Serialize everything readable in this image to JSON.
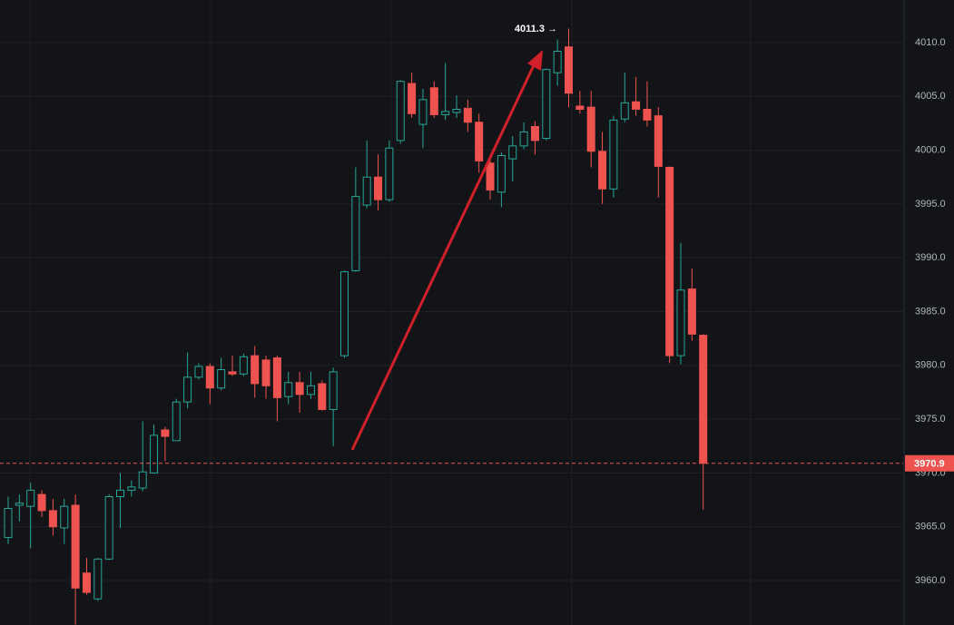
{
  "chart_data": {
    "type": "candlestick",
    "up_color": "#26a69a",
    "down_color": "#ef5350",
    "grid": true,
    "ylim": [
      3955.87,
      4013.96
    ],
    "yticks": [
      {
        "value": 3960,
        "label": "3960.0"
      },
      {
        "value": 3965,
        "label": "3965.0"
      },
      {
        "value": 3970,
        "label": "3970.0"
      },
      {
        "value": 3975,
        "label": "3975.0"
      },
      {
        "value": 3980,
        "label": "3980.0"
      },
      {
        "value": 3985,
        "label": "3985.0"
      },
      {
        "value": 3990,
        "label": "3990.0"
      },
      {
        "value": 3995,
        "label": "3995.0"
      },
      {
        "value": 4000,
        "label": "4000.0"
      },
      {
        "value": 4005,
        "label": "4005.0"
      },
      {
        "value": 4010,
        "label": "4010.0"
      }
    ],
    "last_price": 3970.9,
    "max_annotation": "4011.3 →",
    "open": [
      3964.0,
      3967.0,
      3966.9,
      3968.0,
      3966.5,
      3964.9,
      3967.0,
      3960.7,
      3958.3,
      3962.0,
      3967.8,
      3968.4,
      3968.6,
      3970.0,
      3974.0,
      3973.0,
      3976.6,
      3978.9,
      3979.9,
      3977.9,
      3979.4,
      3979.2,
      3980.9,
      3980.5,
      3980.7,
      3977.1,
      3978.4,
      3977.3,
      3978.3,
      3975.9,
      3980.9,
      3988.8,
      3994.9,
      3997.5,
      3995.4,
      4000.9,
      4006.2,
      4002.4,
      4005.8,
      4003.3,
      4003.5,
      4003.9,
      4002.6,
      3998.8,
      3996.1,
      3999.2,
      4000.4,
      4002.2,
      4001.1,
      4007.2,
      4009.6,
      4004.1,
      4004.0,
      3999.9,
      3996.4,
      4002.9,
      4004.5,
      4003.8,
      4003.2,
      3998.4,
      3980.9,
      3987.1,
      3982.8
    ],
    "high": [
      3967.8,
      3968.0,
      3969.1,
      3968.4,
      3967.6,
      3967.6,
      3968.0,
      3962.1,
      3962.1,
      3968.0,
      3970.0,
      3969.3,
      3974.8,
      3974.5,
      3974.3,
      3976.9,
      3981.2,
      3980.2,
      3980.2,
      3980.7,
      3980.9,
      3981.1,
      3981.8,
      3980.9,
      3980.9,
      3979.4,
      3979.4,
      3979.4,
      3978.6,
      3979.8,
      3988.8,
      3998.4,
      4000.9,
      3999.6,
      4000.9,
      4006.5,
      4007.2,
      4005.7,
      4006.4,
      4008.1,
      4005.1,
      4004.7,
      4003.4,
      3999.6,
      3999.8,
      4001.3,
      4002.6,
      4002.7,
      4007.6,
      4010.3,
      4011.3,
      4005.5,
      4005.5,
      4001.7,
      4003.2,
      4007.2,
      4006.8,
      4006.4,
      4004.0,
      3998.5,
      3991.4,
      3989.0,
      3982.9
    ],
    "low": [
      3963.4,
      3965.5,
      3963.0,
      3965.9,
      3964.2,
      3963.4,
      3955.9,
      3958.7,
      3958.1,
      3961.9,
      3964.9,
      3967.8,
      3968.3,
      3970.0,
      3971.1,
      3973.0,
      3976.0,
      3978.7,
      3976.4,
      3977.7,
      3979.0,
      3979.0,
      3977.0,
      3976.9,
      3974.8,
      3976.4,
      3975.6,
      3976.9,
      3975.8,
      3972.5,
      3980.7,
      3988.7,
      3994.6,
      3994.4,
      3995.2,
      4000.6,
      4003.0,
      4000.2,
      4003.0,
      4002.8,
      4003.0,
      4001.7,
      3997.9,
      3995.4,
      3994.7,
      3997.1,
      4000.1,
      3999.6,
      4000.9,
      4006.0,
      4004.0,
      4003.4,
      3998.4,
      3995.0,
      3995.6,
      4002.6,
      4003.2,
      4002.2,
      3995.6,
      3980.2,
      3980.1,
      3982.3,
      3966.6
    ],
    "close": [
      3966.7,
      3967.2,
      3968.4,
      3966.5,
      3965.0,
      3966.9,
      3959.3,
      3958.9,
      3962.0,
      3967.8,
      3968.4,
      3968.7,
      3970.1,
      3973.5,
      3973.4,
      3976.6,
      3978.9,
      3979.9,
      3977.9,
      3979.6,
      3979.2,
      3980.8,
      3978.3,
      3978.1,
      3977.0,
      3978.4,
      3977.3,
      3978.1,
      3975.9,
      3979.4,
      3988.7,
      3995.7,
      3997.5,
      3995.4,
      4000.2,
      4006.4,
      4003.4,
      4004.7,
      4003.3,
      4003.6,
      4003.8,
      4002.6,
      3999.0,
      3996.3,
      3999.5,
      4000.4,
      4001.7,
      4000.9,
      4007.5,
      4009.2,
      4005.3,
      4003.8,
      3999.9,
      3996.4,
      4002.8,
      4004.4,
      4003.8,
      4002.8,
      3998.5,
      3980.9,
      3987.0,
      3982.9,
      3970.9
    ]
  }
}
